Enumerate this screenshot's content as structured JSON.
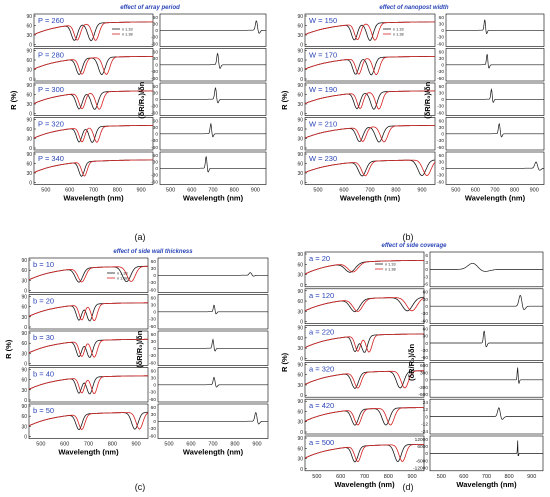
{
  "colors": {
    "black": "#1a1a1a",
    "red": "#d42020",
    "annotation": "#2b46b8",
    "frame": "#000000"
  },
  "figure": {
    "panels": [
      {
        "id": "a",
        "caption": "(a)",
        "title": "effect of array period",
        "r_axis_label": "R (%)",
        "dr_axis_label": "(δR/R₀)/δn",
        "x_axis_label": "Wavelength (nm)",
        "legend": [
          "n 1.33",
          "n 1.38"
        ],
        "rows": [
          {
            "label": "P = 260",
            "r": {
              "d1": 620,
              "d2": 690,
              "m": 0.55,
              "w": 18
            },
            "dr": {
              "peak": 905,
              "amp": 0.75,
              "w": 7
            },
            "dr_ticks": [
              "60",
              "30",
              "0",
              "-30",
              "-60"
            ]
          },
          {
            "label": "P = 280",
            "r": {
              "d1": 640,
              "d2": 735,
              "m": 0.55,
              "w": 18
            },
            "dr": {
              "peak": 722,
              "amp": 0.9,
              "w": 6
            },
            "dr_ticks": [
              "60",
              "30",
              "0",
              "-30",
              "-60"
            ]
          },
          {
            "label": "P = 300",
            "r": {
              "d1": 640,
              "d2": 705,
              "m": 0.55,
              "w": 18
            },
            "dr": {
              "peak": 712,
              "amp": 0.9,
              "w": 6
            },
            "dr_ticks": [
              "60",
              "30",
              "0",
              "-30",
              "-60"
            ]
          },
          {
            "label": "P = 320",
            "r": {
              "d1": 640,
              "d2": 695,
              "m": 0.5,
              "w": 16
            },
            "dr": {
              "peak": 690,
              "amp": 0.8,
              "w": 5
            },
            "dr_ticks": [
              "60",
              "30",
              "0",
              "-30",
              "-60"
            ]
          },
          {
            "label": "P = 340",
            "r": {
              "d1": 650,
              "d2": 0,
              "m": 0.5,
              "w": 16
            },
            "dr": {
              "peak": 668,
              "amp": 0.95,
              "w": 5
            },
            "dr_ticks": [
              "60",
              "30",
              "0",
              "-30",
              "-60"
            ]
          }
        ],
        "x_ticks": [
          "500",
          "600",
          "700",
          "800",
          "900"
        ]
      },
      {
        "id": "b",
        "caption": "(b)",
        "title": "effect of nanopost width",
        "r_axis_label": "R (%)",
        "dr_axis_label": "(δR/R₀)/δn",
        "x_axis_label": "Wavelength (nm)",
        "legend": [
          "n 1.33",
          "n 1.38"
        ],
        "rows": [
          {
            "label": "W = 150",
            "r": {
              "d1": 640,
              "d2": 700,
              "m": 0.55,
              "w": 16
            },
            "dr": {
              "peak": 648,
              "amp": 0.85,
              "w": 5
            },
            "dr_ticks": [
              "60",
              "30",
              "0",
              "-30",
              "-60"
            ]
          },
          {
            "label": "W = 170",
            "r": {
              "d1": 645,
              "d2": 705,
              "m": 0.55,
              "w": 16
            },
            "dr": {
              "peak": 660,
              "amp": 0.85,
              "w": 5
            },
            "dr_ticks": [
              "60",
              "30",
              "0",
              "-30",
              "-60"
            ]
          },
          {
            "label": "W = 190",
            "r": {
              "d1": 650,
              "d2": 715,
              "m": 0.55,
              "w": 16
            },
            "dr": {
              "peak": 682,
              "amp": 0.8,
              "w": 5
            },
            "dr_ticks": [
              "60",
              "30",
              "0",
              "-30",
              "-60"
            ]
          },
          {
            "label": "W = 210",
            "r": {
              "d1": 660,
              "d2": 735,
              "m": 0.5,
              "w": 18
            },
            "dr": {
              "peak": 722,
              "amp": 0.8,
              "w": 6
            },
            "dr_ticks": [
              "60",
              "30",
              "0",
              "-30",
              "-60"
            ]
          },
          {
            "label": "W = 230",
            "r": {
              "d1": 670,
              "d2": 900,
              "m": 0.5,
              "w": 20
            },
            "dr": {
              "peak": 910,
              "amp": 0.5,
              "w": 10
            },
            "dr_ticks": [
              "60",
              "30",
              "0",
              "-30",
              "-60"
            ]
          }
        ],
        "x_ticks": [
          "500",
          "600",
          "700",
          "800",
          "900"
        ]
      },
      {
        "id": "c",
        "caption": "(c)",
        "title": "effect of side wall thickness",
        "r_axis_label": "R (%)",
        "dr_axis_label": "(δR/R₀)/δn",
        "x_axis_label": "Wavelength (nm)",
        "legend": [
          "n 1.33",
          "n 1.38"
        ],
        "rows": [
          {
            "label": "b = 10",
            "r": {
              "d1": 660,
              "d2": 860,
              "m": 0.45,
              "w": 22
            },
            "dr": {
              "peak": 870,
              "amp": 0.2,
              "w": 8
            },
            "dr_ticks": [
              "60",
              "30",
              "0",
              "-30",
              "-60"
            ]
          },
          {
            "label": "b = 20",
            "r": {
              "d1": 660,
              "d2": 705,
              "m": 0.5,
              "w": 16
            },
            "dr": {
              "peak": 705,
              "amp": 0.5,
              "w": 5
            },
            "dr_ticks": [
              "60",
              "30",
              "0",
              "-30",
              "-60"
            ]
          },
          {
            "label": "b = 30",
            "r": {
              "d1": 660,
              "d2": 705,
              "m": 0.5,
              "w": 16
            },
            "dr": {
              "peak": 700,
              "amp": 0.65,
              "w": 5
            },
            "dr_ticks": [
              "60",
              "30",
              "0",
              "-30",
              "-60"
            ]
          },
          {
            "label": "b = 40",
            "r": {
              "d1": 660,
              "d2": 705,
              "m": 0.5,
              "w": 16
            },
            "dr": {
              "peak": 705,
              "amp": 0.55,
              "w": 6
            },
            "dr_ticks": [
              "60",
              "30",
              "0",
              "-30",
              "-60"
            ]
          },
          {
            "label": "b = 50",
            "r": {
              "d1": 660,
              "d2": 895,
              "m": 0.5,
              "w": 18
            },
            "dr": {
              "peak": 895,
              "amp": 0.65,
              "w": 7
            },
            "dr_ticks": [
              "60",
              "30",
              "0",
              "-30",
              "-60"
            ]
          }
        ],
        "x_ticks": [
          "500",
          "600",
          "700",
          "800",
          "900"
        ]
      },
      {
        "id": "d",
        "caption": "(d)",
        "title": "effect of side coverage",
        "r_axis_label": "R (%)",
        "dr_axis_label": "(δR/R₀)/δn",
        "x_axis_label": "Wavelength (nm)",
        "legend": [
          "n 1.33",
          "n 1.38"
        ],
        "rows": [
          {
            "label": "a = 20",
            "r": {
              "d1": 640,
              "d2": 0,
              "m": 0.3,
              "w": 30
            },
            "dr": {
              "peak": 640,
              "amp": 0.45,
              "w": 30
            },
            "dr_ticks": [
              "6",
              "3",
              "0",
              "-3",
              "-6"
            ]
          },
          {
            "label": "a = 120",
            "r": {
              "d1": 660,
              "d2": 880,
              "m": 0.4,
              "w": 28
            },
            "dr": {
              "peak": 850,
              "amp": 0.8,
              "w": 9
            },
            "dr_ticks": [
              "60",
              "30",
              "0",
              "-30",
              "-60"
            ]
          },
          {
            "label": "a = 220",
            "r": {
              "d1": 660,
              "d2": 700,
              "m": 0.5,
              "w": 16
            },
            "dr": {
              "peak": 690,
              "amp": 0.9,
              "w": 5
            },
            "dr_ticks": [
              "60",
              "30",
              "0",
              "-30",
              "-60"
            ]
          },
          {
            "label": "a = 320",
            "r": {
              "d1": 660,
              "d2": 850,
              "m": 0.5,
              "w": 20
            },
            "dr": {
              "peak": 838,
              "amp": 0.9,
              "w": 3
            },
            "dr_ticks": [
              "600",
              "300",
              "0",
              "-300",
              "-600"
            ]
          },
          {
            "label": "a = 420",
            "r": {
              "d1": 660,
              "d2": 790,
              "m": 0.5,
              "w": 20
            },
            "dr": {
              "peak": 755,
              "amp": 0.65,
              "w": 8
            },
            "dr_ticks": [
              "24",
              "12",
              "0",
              "-12",
              "-24"
            ]
          },
          {
            "label": "a = 500",
            "r": {
              "d1": 660,
              "d2": 840,
              "m": 0.5,
              "w": 18
            },
            "dr": {
              "peak": 838,
              "amp": 0.95,
              "w": 1.5
            },
            "dr_ticks": [
              "12000",
              "6000",
              "0",
              "-6000",
              "-12000"
            ]
          }
        ],
        "x_ticks": [
          "500",
          "600",
          "700",
          "800",
          "900"
        ]
      }
    ]
  },
  "chart_data": [
    {
      "type": "line",
      "panel": "a",
      "title": "effect of array period",
      "xlabel": "Wavelength (nm)",
      "ylabel": "R (%)",
      "xlim": [
        450,
        950
      ],
      "ylim": [
        0,
        90
      ],
      "series": [
        {
          "name": "n 1.33"
        },
        {
          "name": "n 1.38"
        }
      ],
      "parameter": "P",
      "parameter_values": [
        260,
        280,
        300,
        320,
        340
      ],
      "approx_resonance_dips_nm": [
        [
          620,
          690
        ],
        [
          640,
          735
        ],
        [
          640,
          705
        ],
        [
          640,
          695
        ],
        [
          650,
          650
        ]
      ],
      "sensitivity_ylabel": "(δR/R₀)/δn",
      "sensitivity_ylim": [
        -60,
        60
      ],
      "approx_sensitivity_peaks_nm": [
        905,
        722,
        712,
        690,
        668
      ]
    },
    {
      "type": "line",
      "panel": "b",
      "title": "effect of nanopost width",
      "xlabel": "Wavelength (nm)",
      "ylabel": "R (%)",
      "xlim": [
        450,
        950
      ],
      "ylim": [
        0,
        90
      ],
      "series": [
        {
          "name": "n 1.33"
        },
        {
          "name": "n 1.38"
        }
      ],
      "parameter": "W",
      "parameter_values": [
        150,
        170,
        190,
        210,
        230
      ],
      "approx_resonance_dips_nm": [
        [
          640,
          700
        ],
        [
          645,
          705
        ],
        [
          650,
          715
        ],
        [
          660,
          735
        ],
        [
          670,
          900
        ]
      ],
      "sensitivity_ylabel": "(δR/R₀)/δn",
      "sensitivity_ylim": [
        -60,
        60
      ],
      "approx_sensitivity_peaks_nm": [
        648,
        660,
        682,
        722,
        910
      ]
    },
    {
      "type": "line",
      "panel": "c",
      "title": "effect of side wall thickness",
      "xlabel": "Wavelength (nm)",
      "ylabel": "R (%)",
      "xlim": [
        450,
        950
      ],
      "ylim": [
        0,
        90
      ],
      "series": [
        {
          "name": "n 1.33"
        },
        {
          "name": "n 1.38"
        }
      ],
      "parameter": "b",
      "parameter_values": [
        10,
        20,
        30,
        40,
        50
      ],
      "approx_resonance_dips_nm": [
        [
          660,
          860
        ],
        [
          660,
          705
        ],
        [
          660,
          705
        ],
        [
          660,
          705
        ],
        [
          660,
          895
        ]
      ],
      "sensitivity_ylabel": "(δR/R₀)/δn",
      "sensitivity_ylim": [
        -60,
        60
      ],
      "approx_sensitivity_peaks_nm": [
        870,
        705,
        700,
        705,
        895
      ]
    },
    {
      "type": "line",
      "panel": "d",
      "title": "effect of side coverage",
      "xlabel": "Wavelength (nm)",
      "ylabel": "R (%)",
      "xlim": [
        450,
        950
      ],
      "ylim": [
        0,
        90
      ],
      "series": [
        {
          "name": "n 1.33"
        },
        {
          "name": "n 1.38"
        }
      ],
      "parameter": "a",
      "parameter_values": [
        20,
        120,
        220,
        320,
        420,
        500
      ],
      "approx_resonance_dips_nm": [
        [
          640,
          640
        ],
        [
          660,
          880
        ],
        [
          660,
          700
        ],
        [
          660,
          850
        ],
        [
          660,
          790
        ],
        [
          660,
          840
        ]
      ],
      "sensitivity_ylabel": "(δR/R₀)/δn",
      "sensitivity_ylims": [
        [
          -6,
          6
        ],
        [
          -60,
          60
        ],
        [
          -60,
          60
        ],
        [
          -600,
          600
        ],
        [
          -24,
          24
        ],
        [
          -12000,
          12000
        ]
      ],
      "approx_sensitivity_peaks_nm": [
        640,
        850,
        690,
        838,
        755,
        838
      ]
    }
  ]
}
